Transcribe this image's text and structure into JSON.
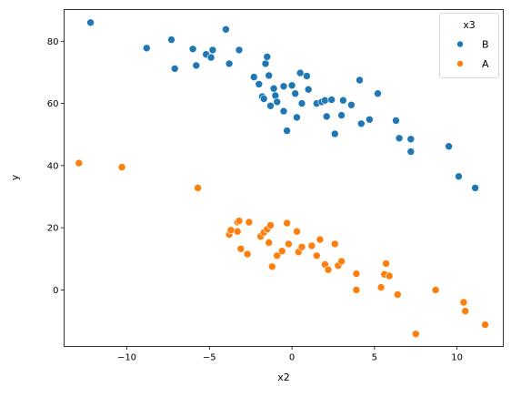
{
  "chart_data": {
    "type": "scatter",
    "xlabel": "x2",
    "ylabel": "y",
    "xlim": [
      -13.8,
      12.8
    ],
    "ylim": [
      -18.2,
      90.2
    ],
    "xticks": [
      -10,
      -5,
      0,
      5,
      10
    ],
    "yticks": [
      0,
      20,
      40,
      60,
      80
    ],
    "grid": false,
    "legend": {
      "title": "x3",
      "placement": "top-right"
    },
    "series": [
      {
        "name": "B",
        "color": "#1f77b4",
        "points": [
          [
            -12.2,
            86
          ],
          [
            -8.8,
            77.8
          ],
          [
            -7.3,
            80.5
          ],
          [
            -7.1,
            71.2
          ],
          [
            -6.0,
            77.5
          ],
          [
            -5.8,
            72.2
          ],
          [
            -5.2,
            75.8
          ],
          [
            -4.9,
            74.8
          ],
          [
            -4.8,
            77.2
          ],
          [
            -4.0,
            83.8
          ],
          [
            -3.8,
            72.8
          ],
          [
            -3.2,
            77.2
          ],
          [
            -2.3,
            68.5
          ],
          [
            -2.0,
            66.2
          ],
          [
            -1.8,
            62.2
          ],
          [
            -1.7,
            61.5
          ],
          [
            -1.6,
            72.8
          ],
          [
            -1.5,
            75.0
          ],
          [
            -1.4,
            69.0
          ],
          [
            -1.3,
            59.2
          ],
          [
            -1.1,
            64.8
          ],
          [
            -1.0,
            62.5
          ],
          [
            -0.9,
            60.5
          ],
          [
            -0.5,
            65.5
          ],
          [
            -0.5,
            57.5
          ],
          [
            -0.3,
            51.2
          ],
          [
            0.0,
            65.8
          ],
          [
            0.2,
            63.2
          ],
          [
            0.3,
            55.5
          ],
          [
            0.5,
            69.8
          ],
          [
            0.6,
            60.0
          ],
          [
            0.9,
            68.8
          ],
          [
            1.0,
            64.5
          ],
          [
            1.5,
            60.0
          ],
          [
            1.8,
            60.5
          ],
          [
            2.0,
            61.0
          ],
          [
            2.1,
            55.8
          ],
          [
            2.4,
            61.2
          ],
          [
            2.6,
            50.2
          ],
          [
            3.0,
            56.2
          ],
          [
            3.1,
            61.0
          ],
          [
            3.6,
            59.5
          ],
          [
            4.1,
            67.5
          ],
          [
            4.2,
            53.5
          ],
          [
            4.7,
            54.8
          ],
          [
            5.2,
            63.2
          ],
          [
            6.3,
            54.5
          ],
          [
            6.5,
            48.8
          ],
          [
            7.2,
            48.5
          ],
          [
            7.2,
            44.5
          ],
          [
            9.5,
            46.2
          ],
          [
            10.1,
            36.5
          ],
          [
            11.1,
            32.8
          ]
        ]
      },
      {
        "name": "A",
        "color": "#ff7f0e",
        "points": [
          [
            -12.9,
            40.8
          ],
          [
            -10.3,
            39.5
          ],
          [
            -5.7,
            32.8
          ],
          [
            -3.8,
            17.8
          ],
          [
            -3.7,
            19.2
          ],
          [
            -3.3,
            21.8
          ],
          [
            -3.3,
            18.8
          ],
          [
            -3.2,
            22.2
          ],
          [
            -3.1,
            13.2
          ],
          [
            -2.7,
            11.5
          ],
          [
            -2.6,
            21.8
          ],
          [
            -1.9,
            17.2
          ],
          [
            -1.7,
            18.5
          ],
          [
            -1.5,
            19.5
          ],
          [
            -1.3,
            20.8
          ],
          [
            -1.4,
            15.2
          ],
          [
            -1.2,
            7.5
          ],
          [
            -0.9,
            11.0
          ],
          [
            -0.6,
            12.5
          ],
          [
            -0.3,
            21.5
          ],
          [
            -0.2,
            14.8
          ],
          [
            0.3,
            18.8
          ],
          [
            0.4,
            12.2
          ],
          [
            0.6,
            13.8
          ],
          [
            1.2,
            14.2
          ],
          [
            1.5,
            11.0
          ],
          [
            1.7,
            16.2
          ],
          [
            2.0,
            8.2
          ],
          [
            2.2,
            6.5
          ],
          [
            2.6,
            14.8
          ],
          [
            2.8,
            7.8
          ],
          [
            3.0,
            9.2
          ],
          [
            3.9,
            5.2
          ],
          [
            3.9,
            0.0
          ],
          [
            5.4,
            0.8
          ],
          [
            5.6,
            5.0
          ],
          [
            5.7,
            8.5
          ],
          [
            5.9,
            4.5
          ],
          [
            6.4,
            -1.5
          ],
          [
            7.5,
            -14.2
          ],
          [
            8.7,
            0.0
          ],
          [
            10.4,
            -4.0
          ],
          [
            10.5,
            -6.8
          ],
          [
            11.7,
            -11.2
          ]
        ]
      }
    ]
  }
}
